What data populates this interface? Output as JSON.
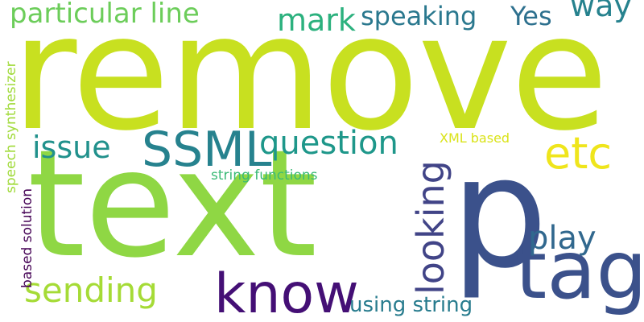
{
  "words": {
    "remove": {
      "text": "remove",
      "color": "#c8e020"
    },
    "text": {
      "text": "text",
      "color": "#8fd744"
    },
    "p": {
      "text": "p",
      "color": "#3b518b"
    },
    "tag": {
      "text": "tag",
      "color": "#3b518b"
    },
    "know": {
      "text": "know",
      "color": "#440f75"
    },
    "ssml": {
      "text": "SSML",
      "color": "#26828e"
    },
    "question": {
      "text": "question",
      "color": "#1e978a"
    },
    "etc": {
      "text": "etc",
      "color": "#efe51c"
    },
    "particular_line": {
      "text": "particular line",
      "color": "#6ccd5a"
    },
    "mark": {
      "text": "mark",
      "color": "#2cb17e"
    },
    "speaking": {
      "text": "speaking",
      "color": "#2a788e"
    },
    "yes": {
      "text": "Yes",
      "color": "#2d708e"
    },
    "way": {
      "text": "way",
      "color": "#26828e"
    },
    "issue": {
      "text": "issue",
      "color": "#21918c"
    },
    "sending": {
      "text": "sending",
      "color": "#a5db36"
    },
    "play": {
      "text": "play",
      "color": "#31688e"
    },
    "looking": {
      "text": "looking",
      "color": "#414487"
    },
    "using_string": {
      "text": "using string",
      "color": "#287c8e"
    },
    "string_functions": {
      "text": "string functions",
      "color": "#3aba76"
    },
    "xml_based": {
      "text": "XML based",
      "color": "#dae319"
    },
    "speech_synthesizer": {
      "text": "speech synthesizer",
      "color": "#a0da39"
    },
    "based_solution": {
      "text": "based solution",
      "color": "#440154"
    }
  }
}
